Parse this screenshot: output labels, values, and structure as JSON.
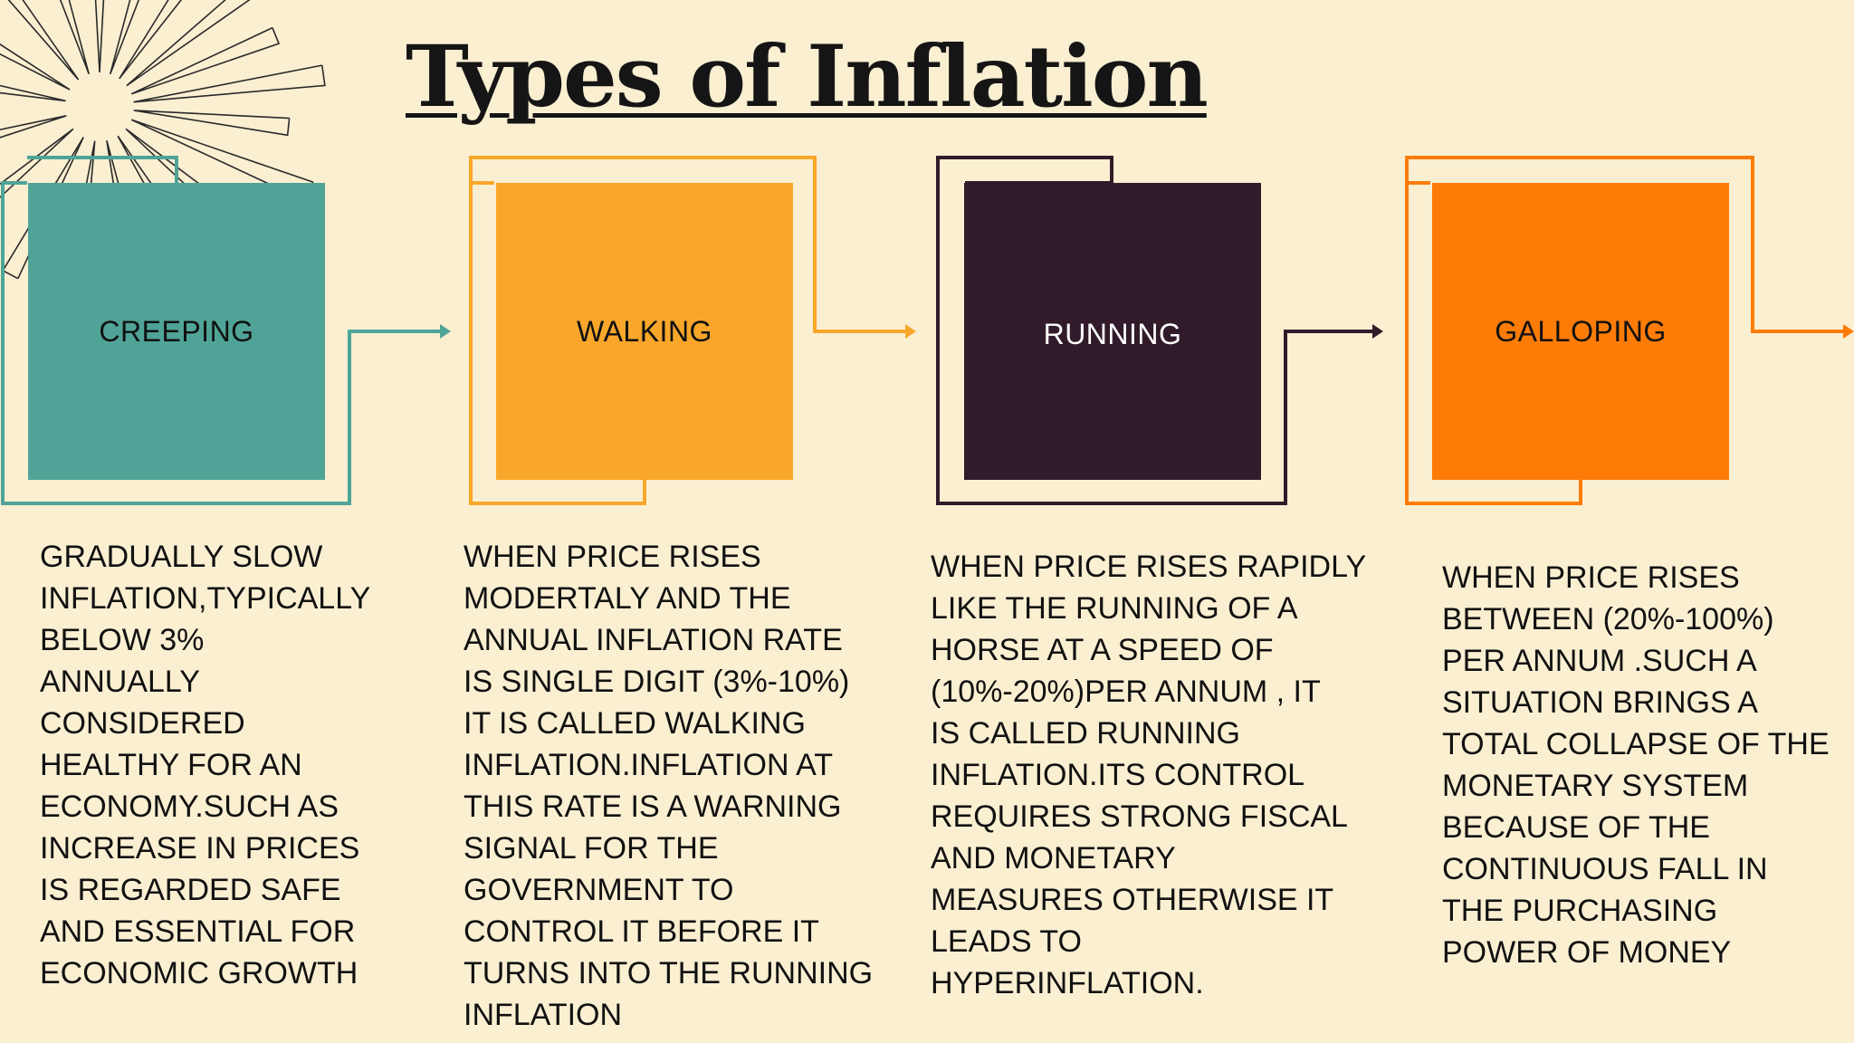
{
  "slide": {
    "title": "Types of Inflation",
    "colors": {
      "background": "#fbefd2",
      "creeping": "#4fa497",
      "walking": "#f9a72b",
      "running": "#311b2b",
      "galloping": "#fd7c08"
    }
  },
  "stages": [
    {
      "label": "CREEPING",
      "description": "GRADUALLY SLOW\nINFLATION,TYPICALLY\nBELOW 3%\nANNUALLY\nCONSIDERED\nHEALTHY FOR AN\nECONOMY.SUCH AS\nINCREASE IN PRICES\nIS REGARDED SAFE\nAND ESSENTIAL FOR\nECONOMIC GROWTH"
    },
    {
      "label": "WALKING",
      "description": "WHEN PRICE RISES\nMODERTALY AND THE\nANNUAL INFLATION RATE\nIS SINGLE DIGIT (3%-10%)\nIT IS CALLED WALKING\nINFLATION.INFLATION AT\nTHIS RATE IS A WARNING\nSIGNAL FOR THE\nGOVERNMENT TO\nCONTROL IT BEFORE IT\nTURNS INTO THE RUNNING\nINFLATION"
    },
    {
      "label": "RUNNING",
      "description": "WHEN PRICE RISES RAPIDLY\nLIKE THE RUNNING OF A\nHORSE AT A SPEED OF\n(10%-20%)PER ANNUM , IT\nIS CALLED RUNNING\nINFLATION.ITS CONTROL\nREQUIRES STRONG FISCAL\nAND MONETARY\nMEASURES OTHERWISE IT\nLEADS TO\nHYPERINFLATION."
    },
    {
      "label": "GALLOPING",
      "description": "WHEN PRICE RISES\nBETWEEN (20%-100%)\nPER ANNUM .SUCH A\nSITUATION BRINGS A\nTOTAL COLLAPSE OF THE\nMONETARY SYSTEM\nBECAUSE OF THE\nCONTINUOUS FALL IN\nTHE PURCHASING\nPOWER OF MONEY"
    }
  ]
}
